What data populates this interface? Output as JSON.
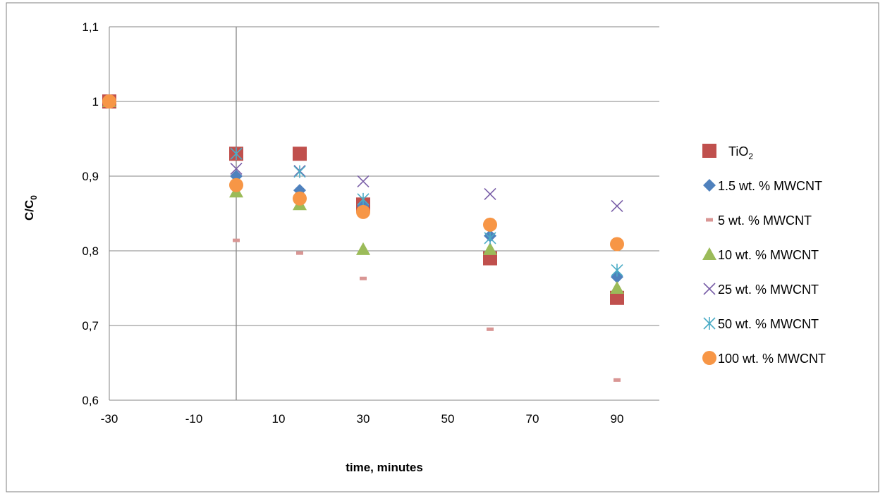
{
  "chart_data": {
    "type": "scatter",
    "xlabel": "time, minutes",
    "ylabel_main": "C/C",
    "ylabel_sub": "0",
    "xlim": [
      -30,
      100
    ],
    "ylim": [
      0.6,
      1.1
    ],
    "x_ticks": [
      -30,
      -10,
      10,
      30,
      50,
      70,
      90
    ],
    "x_tick_labels": [
      "-30",
      "-10",
      "10",
      "30",
      "50",
      "70",
      "90"
    ],
    "y_ticks": [
      0.6,
      0.7,
      0.8,
      0.9,
      1.0,
      1.1
    ],
    "y_tick_labels": [
      "0,6",
      "0,7",
      "0,8",
      "0,9",
      "1",
      "1,1"
    ],
    "grid": "horizontal",
    "reference_line_x": 0,
    "legend_position": "right",
    "series": [
      {
        "name": "TiO",
        "name_sub": "2",
        "marker": "square",
        "color": "#C0504D",
        "x": [
          -30,
          0,
          15,
          30,
          60,
          90
        ],
        "y": [
          1.0,
          0.93,
          0.93,
          0.862,
          0.79,
          0.737
        ]
      },
      {
        "name": "1.5 wt. % MWCNT",
        "marker": "diamond",
        "color": "#4F81BD",
        "x": [
          -30,
          0,
          15,
          30,
          60,
          90
        ],
        "y": [
          1.0,
          0.9,
          0.881,
          0.86,
          0.82,
          0.765
        ]
      },
      {
        "name": "5 wt. % MWCNT",
        "marker": "dash",
        "color": "#D99694",
        "x": [
          0,
          15,
          30,
          60,
          90
        ],
        "y": [
          0.814,
          0.797,
          0.763,
          0.695,
          0.627
        ]
      },
      {
        "name": "10 wt. % MWCNT",
        "marker": "triangle",
        "color": "#9BBB59",
        "x": [
          -30,
          0,
          15,
          30,
          60,
          90
        ],
        "y": [
          1.0,
          0.879,
          0.862,
          0.802,
          0.802,
          0.75
        ]
      },
      {
        "name": "25 wt. % MWCNT",
        "marker": "x",
        "color": "#7A5FA8",
        "x": [
          0,
          15,
          30,
          60,
          90
        ],
        "y": [
          0.91,
          0.907,
          0.893,
          0.876,
          0.86
        ]
      },
      {
        "name": "50 wt. % MWCNT",
        "marker": "star",
        "color": "#4BACC6",
        "x": [
          0,
          15,
          30,
          60,
          90
        ],
        "y": [
          0.93,
          0.906,
          0.869,
          0.817,
          0.774
        ]
      },
      {
        "name": "100 wt. % MWCNT",
        "marker": "circle",
        "color": "#F79646",
        "x": [
          -30,
          0,
          15,
          30,
          60,
          90
        ],
        "y": [
          1.0,
          0.888,
          0.87,
          0.852,
          0.835,
          0.809
        ]
      }
    ]
  }
}
